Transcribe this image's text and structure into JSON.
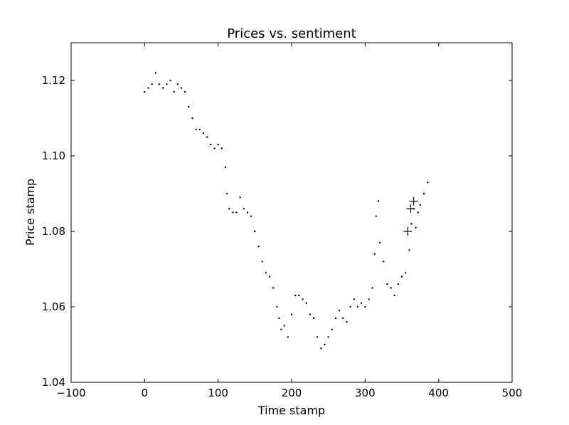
{
  "chart_data": {
    "type": "scatter",
    "title": "Prices vs. sentiment",
    "xlabel": "Time stamp",
    "ylabel": "Price stamp",
    "xlim": [
      -100,
      500
    ],
    "ylim": [
      1.04,
      1.13
    ],
    "xticks": [
      -100,
      0,
      100,
      200,
      300,
      400,
      500
    ],
    "xtick_labels": [
      "−100",
      "0",
      "100",
      "200",
      "300",
      "400",
      "500"
    ],
    "yticks": [
      1.04,
      1.06,
      1.08,
      1.1,
      1.12
    ],
    "ytick_labels": [
      "1.04",
      "1.06",
      "1.08",
      "1.10",
      "1.12"
    ],
    "grid": false,
    "legend": false,
    "colors": {
      "points": "#000000",
      "axes": "#000000",
      "background": "#ffffff"
    },
    "series": [
      {
        "marker": "dot",
        "x": [
          0,
          5,
          10,
          15,
          20,
          25,
          30,
          35,
          40,
          45,
          50,
          55,
          60,
          65,
          70,
          75,
          80,
          85,
          90,
          95,
          100,
          105,
          110,
          112,
          115,
          120,
          125,
          130,
          135,
          140,
          145,
          150,
          155,
          160,
          165,
          170,
          175,
          180,
          183,
          186,
          190,
          195,
          200,
          205,
          210,
          215,
          220,
          225,
          230,
          235,
          240,
          245,
          250,
          255,
          260,
          265,
          270,
          275,
          280,
          285,
          290,
          295,
          300,
          305,
          310,
          313,
          315,
          318,
          320,
          325,
          330,
          335,
          340,
          345,
          350,
          355,
          360,
          363,
          366,
          369,
          372,
          375,
          380,
          385
        ],
        "y": [
          1.117,
          1.118,
          1.119,
          1.122,
          1.119,
          1.118,
          1.119,
          1.12,
          1.117,
          1.119,
          1.118,
          1.117,
          1.113,
          1.11,
          1.107,
          1.107,
          1.106,
          1.105,
          1.103,
          1.102,
          1.103,
          1.102,
          1.097,
          1.09,
          1.086,
          1.085,
          1.085,
          1.089,
          1.086,
          1.085,
          1.084,
          1.08,
          1.076,
          1.072,
          1.069,
          1.068,
          1.065,
          1.06,
          1.057,
          1.054,
          1.055,
          1.052,
          1.058,
          1.063,
          1.063,
          1.062,
          1.061,
          1.058,
          1.057,
          1.052,
          1.049,
          1.05,
          1.052,
          1.054,
          1.057,
          1.059,
          1.057,
          1.056,
          1.06,
          1.062,
          1.06,
          1.061,
          1.06,
          1.062,
          1.065,
          1.074,
          1.084,
          1.088,
          1.077,
          1.072,
          1.066,
          1.065,
          1.063,
          1.066,
          1.068,
          1.069,
          1.075,
          1.082,
          1.086,
          1.081,
          1.085,
          1.087,
          1.09,
          1.093
        ]
      },
      {
        "marker": "plus",
        "x": [
          358,
          362,
          366
        ],
        "y": [
          1.08,
          1.086,
          1.088
        ]
      }
    ]
  }
}
